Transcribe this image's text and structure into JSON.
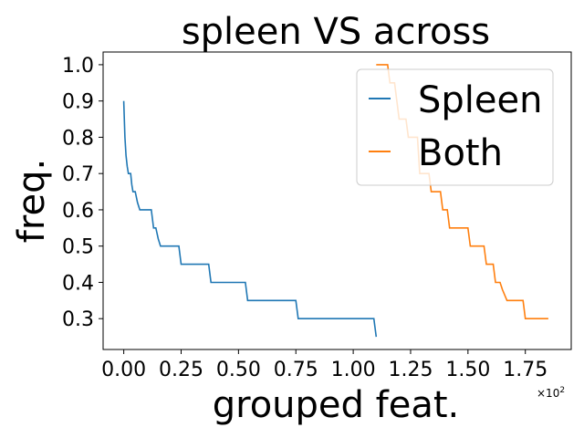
{
  "chart_data": {
    "type": "line",
    "title": "spleen VS across",
    "xlabel": "grouped feat.",
    "ylabel": "freq.",
    "x_multiplier_label": "×10",
    "x_multiplier_exp": "2",
    "xlim": [
      -0.09,
      1.95
    ],
    "ylim": [
      0.215,
      1.035
    ],
    "x_ticks": [
      0.0,
      0.25,
      0.5,
      0.75,
      1.0,
      1.25,
      1.5,
      1.75
    ],
    "x_tick_labels": [
      "0.00",
      "0.25",
      "0.50",
      "0.75",
      "1.00",
      "1.25",
      "1.50",
      "1.75"
    ],
    "y_ticks": [
      0.3,
      0.4,
      0.5,
      0.6,
      0.7,
      0.8,
      0.9,
      1.0
    ],
    "y_tick_labels": [
      "0.3",
      "0.4",
      "0.5",
      "0.6",
      "0.7",
      "0.8",
      "0.9",
      "1.0"
    ],
    "grid": false,
    "legend_position": "top-right",
    "series": [
      {
        "name": "Spleen",
        "color": "#1f77b4",
        "x": [
          0.0,
          0.005,
          0.01,
          0.015,
          0.02,
          0.03,
          0.035,
          0.04,
          0.05,
          0.06,
          0.07,
          0.12,
          0.13,
          0.14,
          0.15,
          0.16,
          0.24,
          0.25,
          0.37,
          0.38,
          0.53,
          0.54,
          0.75,
          0.76,
          1.09,
          1.1
        ],
        "y": [
          0.9,
          0.8,
          0.75,
          0.72,
          0.7,
          0.7,
          0.67,
          0.65,
          0.65,
          0.62,
          0.6,
          0.6,
          0.55,
          0.55,
          0.52,
          0.5,
          0.5,
          0.45,
          0.45,
          0.4,
          0.4,
          0.35,
          0.35,
          0.3,
          0.3,
          0.25
        ]
      },
      {
        "name": "Both",
        "color": "#ff7f0e",
        "x": [
          1.1,
          1.15,
          1.16,
          1.18,
          1.19,
          1.2,
          1.23,
          1.24,
          1.28,
          1.29,
          1.33,
          1.34,
          1.38,
          1.39,
          1.41,
          1.42,
          1.5,
          1.51,
          1.57,
          1.58,
          1.61,
          1.62,
          1.64,
          1.65,
          1.67,
          1.68,
          1.74,
          1.75,
          1.85
        ],
        "y": [
          1.0,
          1.0,
          0.95,
          0.95,
          0.9,
          0.85,
          0.85,
          0.8,
          0.8,
          0.7,
          0.7,
          0.65,
          0.65,
          0.6,
          0.6,
          0.55,
          0.55,
          0.5,
          0.5,
          0.45,
          0.45,
          0.4,
          0.4,
          0.38,
          0.35,
          0.35,
          0.35,
          0.3,
          0.3
        ]
      }
    ]
  }
}
